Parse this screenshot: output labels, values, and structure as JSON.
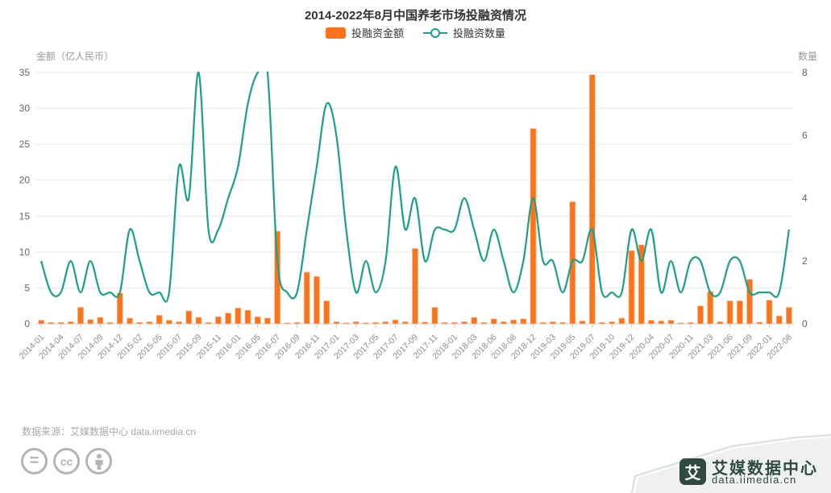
{
  "title": "2014-2022年8月中国养老市场投融资情况",
  "legend": {
    "amount_label": "投融资金额",
    "count_label": "投融资数量"
  },
  "source_note": "数据来源：艾媒数据中心 data.iimedia.cn",
  "badges": {
    "equals_label": "=",
    "cc_label": "cc"
  },
  "logo": {
    "glyph": "艾",
    "name": "艾媒数据中心",
    "site": "data.iimedia.cn"
  },
  "colors": {
    "bar": "#fb741c",
    "bar_edge": "#ffc49a",
    "line": "#19a189",
    "grid": "#e7e7e7",
    "axis_line": "#cccccc",
    "tick_text": "#8c8c8c",
    "ytick_text": "#666666",
    "axis_name_text": "#999999",
    "brand_dark": "#2e4a43",
    "ribbon_bg": "#eff1f1",
    "ribbon_edge": "#dde3e3"
  },
  "chart_data": {
    "type": "combo",
    "title": "2014-2022年8月中国养老市场投融资情况",
    "y_left_name": "金额（亿人民币）",
    "y_right_name": "数量",
    "ylim_left": [
      0,
      35
    ],
    "ylim_right": [
      0,
      8
    ],
    "y_left_ticks": [
      0,
      5,
      10,
      15,
      20,
      25,
      30,
      35
    ],
    "y_right_ticks": [
      0,
      2,
      4,
      6,
      8
    ],
    "grid": true,
    "legend_position": "top",
    "x_label_rotation": -45,
    "categories": [
      "2014-01",
      "",
      "2014-04",
      "",
      "2014-07",
      "",
      "2014-09",
      "",
      "2014-12",
      "",
      "2015-02",
      "",
      "2015-05",
      "",
      "2015-07",
      "",
      "2015-09",
      "",
      "2015-11",
      "",
      "2016-01",
      "",
      "2016-05",
      "",
      "2016-07",
      "",
      "2016-09",
      "",
      "2016-11",
      "",
      "2017-01",
      "",
      "2017-03",
      "",
      "2017-05",
      "",
      "2017-07",
      "",
      "2017-09",
      "",
      "2017-11",
      "",
      "2018-01",
      "",
      "2018-03",
      "",
      "2018-06",
      "",
      "2018-08",
      "",
      "2018-12",
      "",
      "2019-03",
      "",
      "2019-05",
      "",
      "2019-07",
      "",
      "2019-10",
      "",
      "2019-12",
      "",
      "2020-04",
      "",
      "2020-07",
      "",
      "2020-11",
      "",
      "2021-03",
      "",
      "2021-06",
      "",
      "2021-09",
      "",
      "2022-01",
      "",
      "2022-08"
    ],
    "series": [
      {
        "name": "投融资金额",
        "type": "bar",
        "axis": "left",
        "values": [
          0.5,
          0.2,
          0.2,
          0.3,
          2.3,
          0.6,
          0.9,
          0.2,
          4.3,
          0.8,
          0.2,
          0.3,
          1.2,
          0.5,
          0.3,
          1.8,
          0.9,
          0.2,
          1.0,
          1.5,
          2.2,
          1.9,
          1.0,
          0.8,
          12.9,
          0.15,
          0.2,
          7.2,
          6.6,
          3.2,
          0.3,
          0.15,
          0.3,
          0.15,
          0.2,
          0.3,
          0.55,
          0.3,
          10.5,
          0.25,
          2.3,
          0.2,
          0.2,
          0.3,
          0.9,
          0.2,
          0.7,
          0.3,
          0.55,
          0.7,
          27.2,
          0.2,
          0.3,
          0.2,
          17.0,
          0.4,
          34.7,
          0.2,
          0.3,
          0.8,
          10.2,
          11.0,
          0.5,
          0.4,
          0.5,
          0.15,
          0.2,
          2.5,
          4.5,
          0.3,
          3.2,
          3.2,
          6.2,
          0.25,
          3.3,
          1.1,
          2.3
        ]
      },
      {
        "name": "投融资数量",
        "type": "line",
        "axis": "right",
        "smooth": true,
        "values": [
          2,
          1,
          1,
          2,
          1,
          2,
          1,
          1,
          1,
          3,
          2,
          1,
          1,
          1,
          5,
          4,
          8,
          3,
          3,
          4,
          5,
          7,
          8,
          8,
          2,
          1,
          1,
          3,
          5,
          7,
          6,
          3,
          1,
          2,
          1,
          2,
          5,
          3,
          4,
          2,
          3,
          3,
          3,
          4,
          3,
          2,
          3,
          2,
          1,
          2,
          4,
          2,
          2,
          1,
          2,
          2,
          3,
          1,
          1,
          1,
          3,
          2,
          3,
          1,
          2,
          1,
          2,
          2,
          1,
          1,
          2,
          2,
          1,
          1,
          1,
          1,
          3
        ]
      }
    ]
  }
}
